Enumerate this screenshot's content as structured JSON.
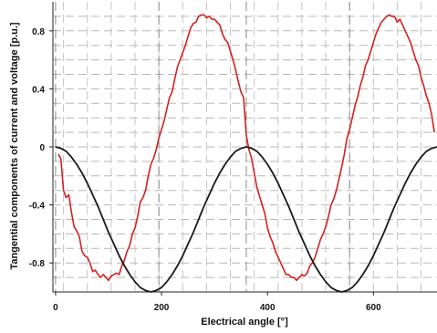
{
  "chart_data": {
    "type": "line",
    "xlabel": "Electrical angle [°]",
    "ylabel": "Tangential components of current and voltage [p.u.]",
    "xlim": [
      -5,
      720
    ],
    "ylim": [
      -1.0,
      1.0
    ],
    "x_ticks": [
      0,
      200,
      400,
      600
    ],
    "x_tick_labels": [
      "0",
      "200",
      "400",
      "600"
    ],
    "y_ticks": [
      -0.8,
      -0.4,
      0,
      0.4,
      0.8
    ],
    "y_tick_labels": [
      "-0.8",
      "-0.4",
      "0",
      "0.4",
      "0.8"
    ],
    "x_gridlines": [
      15,
      60,
      105,
      150,
      195,
      240,
      285,
      330,
      375,
      420,
      465,
      510,
      555,
      600,
      645,
      690
    ],
    "y_gridlines": [
      -0.9,
      -0.8,
      -0.7,
      -0.6,
      -0.5,
      -0.4,
      -0.3,
      -0.2,
      -0.1,
      0,
      0.1,
      0.2,
      0.3,
      0.4,
      0.5,
      0.6,
      0.7,
      0.8,
      0.9
    ],
    "x_gridlines_bold": [
      0,
      195,
      360,
      555
    ],
    "series": [
      {
        "color": "#d42020",
        "x": [
          5,
          10,
          15,
          20,
          25,
          30,
          35,
          40,
          45,
          50,
          55,
          60,
          65,
          70,
          75,
          80,
          85,
          90,
          95,
          100,
          105,
          110,
          115,
          120,
          125,
          130,
          135,
          140,
          145,
          150,
          155,
          160,
          165,
          170,
          175,
          180,
          185,
          190,
          195,
          200,
          205,
          210,
          215,
          220,
          225,
          230,
          235,
          240,
          245,
          250,
          255,
          260,
          265,
          270,
          275,
          280,
          285,
          290,
          295,
          300,
          305,
          310,
          315,
          320,
          325,
          330,
          335,
          340,
          345,
          350,
          355,
          360,
          365,
          370,
          375,
          380,
          385,
          390,
          395,
          400,
          405,
          410,
          415,
          420,
          425,
          430,
          435,
          440,
          445,
          450,
          455,
          460,
          465,
          470,
          475,
          480,
          485,
          490,
          495,
          500,
          505,
          510,
          515,
          520,
          525,
          530,
          535,
          540,
          545,
          550,
          555,
          560,
          565,
          570,
          575,
          580,
          585,
          590,
          595,
          600,
          605,
          610,
          615,
          620,
          625,
          630,
          635,
          640,
          645,
          650,
          655,
          660,
          665,
          670,
          675,
          680,
          685,
          690,
          695,
          700,
          705,
          710,
          715
        ],
        "y": [
          -0.05,
          -0.08,
          -0.3,
          -0.35,
          -0.33,
          -0.45,
          -0.55,
          -0.58,
          -0.62,
          -0.72,
          -0.75,
          -0.76,
          -0.8,
          -0.86,
          -0.85,
          -0.88,
          -0.9,
          -0.88,
          -0.9,
          -0.92,
          -0.89,
          -0.88,
          -0.87,
          -0.88,
          -0.82,
          -0.78,
          -0.72,
          -0.68,
          -0.6,
          -0.56,
          -0.48,
          -0.38,
          -0.35,
          -0.3,
          -0.2,
          -0.12,
          -0.08,
          -0.02,
          0.06,
          0.12,
          0.18,
          0.26,
          0.34,
          0.38,
          0.47,
          0.55,
          0.6,
          0.65,
          0.7,
          0.76,
          0.82,
          0.85,
          0.86,
          0.9,
          0.91,
          0.91,
          0.89,
          0.9,
          0.88,
          0.88,
          0.86,
          0.84,
          0.78,
          0.74,
          0.72,
          0.66,
          0.6,
          0.53,
          0.45,
          0.38,
          0.34,
          0.08,
          -0.02,
          -0.08,
          -0.18,
          -0.28,
          -0.34,
          -0.4,
          -0.46,
          -0.56,
          -0.62,
          -0.66,
          -0.72,
          -0.76,
          -0.8,
          -0.84,
          -0.88,
          -0.88,
          -0.9,
          -0.9,
          -0.92,
          -0.9,
          -0.88,
          -0.89,
          -0.87,
          -0.82,
          -0.8,
          -0.76,
          -0.7,
          -0.64,
          -0.6,
          -0.55,
          -0.48,
          -0.4,
          -0.36,
          -0.3,
          -0.22,
          -0.14,
          -0.05,
          0.06,
          0.12,
          0.2,
          0.28,
          0.34,
          0.42,
          0.48,
          0.56,
          0.6,
          0.66,
          0.72,
          0.78,
          0.82,
          0.86,
          0.88,
          0.9,
          0.91,
          0.9,
          0.9,
          0.86,
          0.88,
          0.84,
          0.8,
          0.76,
          0.72,
          0.66,
          0.6,
          0.56,
          0.48,
          0.42,
          0.35,
          0.3,
          0.22,
          0.1
        ]
      },
      {
        "color": "#1a1a1a",
        "x": [
          0,
          10,
          20,
          30,
          40,
          50,
          60,
          70,
          80,
          90,
          100,
          110,
          120,
          130,
          140,
          150,
          160,
          170,
          180,
          190,
          200,
          210,
          220,
          230,
          240,
          250,
          260,
          270,
          280,
          290,
          300,
          310,
          320,
          330,
          340,
          350,
          360,
          370,
          380,
          390,
          400,
          410,
          420,
          430,
          440,
          450,
          460,
          470,
          480,
          490,
          500,
          510,
          520,
          530,
          540,
          550,
          560,
          570,
          580,
          590,
          600,
          610,
          620,
          630,
          640,
          650,
          660,
          670,
          680,
          690,
          700,
          710,
          720
        ],
        "y": [
          0,
          -0.01,
          -0.03,
          -0.07,
          -0.12,
          -0.18,
          -0.25,
          -0.33,
          -0.41,
          -0.5,
          -0.59,
          -0.67,
          -0.75,
          -0.82,
          -0.88,
          -0.93,
          -0.97,
          -0.99,
          -1.0,
          -0.99,
          -0.97,
          -0.93,
          -0.88,
          -0.82,
          -0.75,
          -0.67,
          -0.59,
          -0.5,
          -0.41,
          -0.33,
          -0.25,
          -0.18,
          -0.12,
          -0.07,
          -0.03,
          -0.01,
          0,
          -0.01,
          -0.03,
          -0.07,
          -0.12,
          -0.18,
          -0.25,
          -0.33,
          -0.41,
          -0.5,
          -0.59,
          -0.67,
          -0.75,
          -0.82,
          -0.88,
          -0.93,
          -0.97,
          -0.99,
          -1.0,
          -0.99,
          -0.97,
          -0.93,
          -0.88,
          -0.82,
          -0.75,
          -0.67,
          -0.59,
          -0.5,
          -0.41,
          -0.33,
          -0.25,
          -0.18,
          -0.12,
          -0.07,
          -0.03,
          -0.01,
          0
        ]
      }
    ]
  }
}
